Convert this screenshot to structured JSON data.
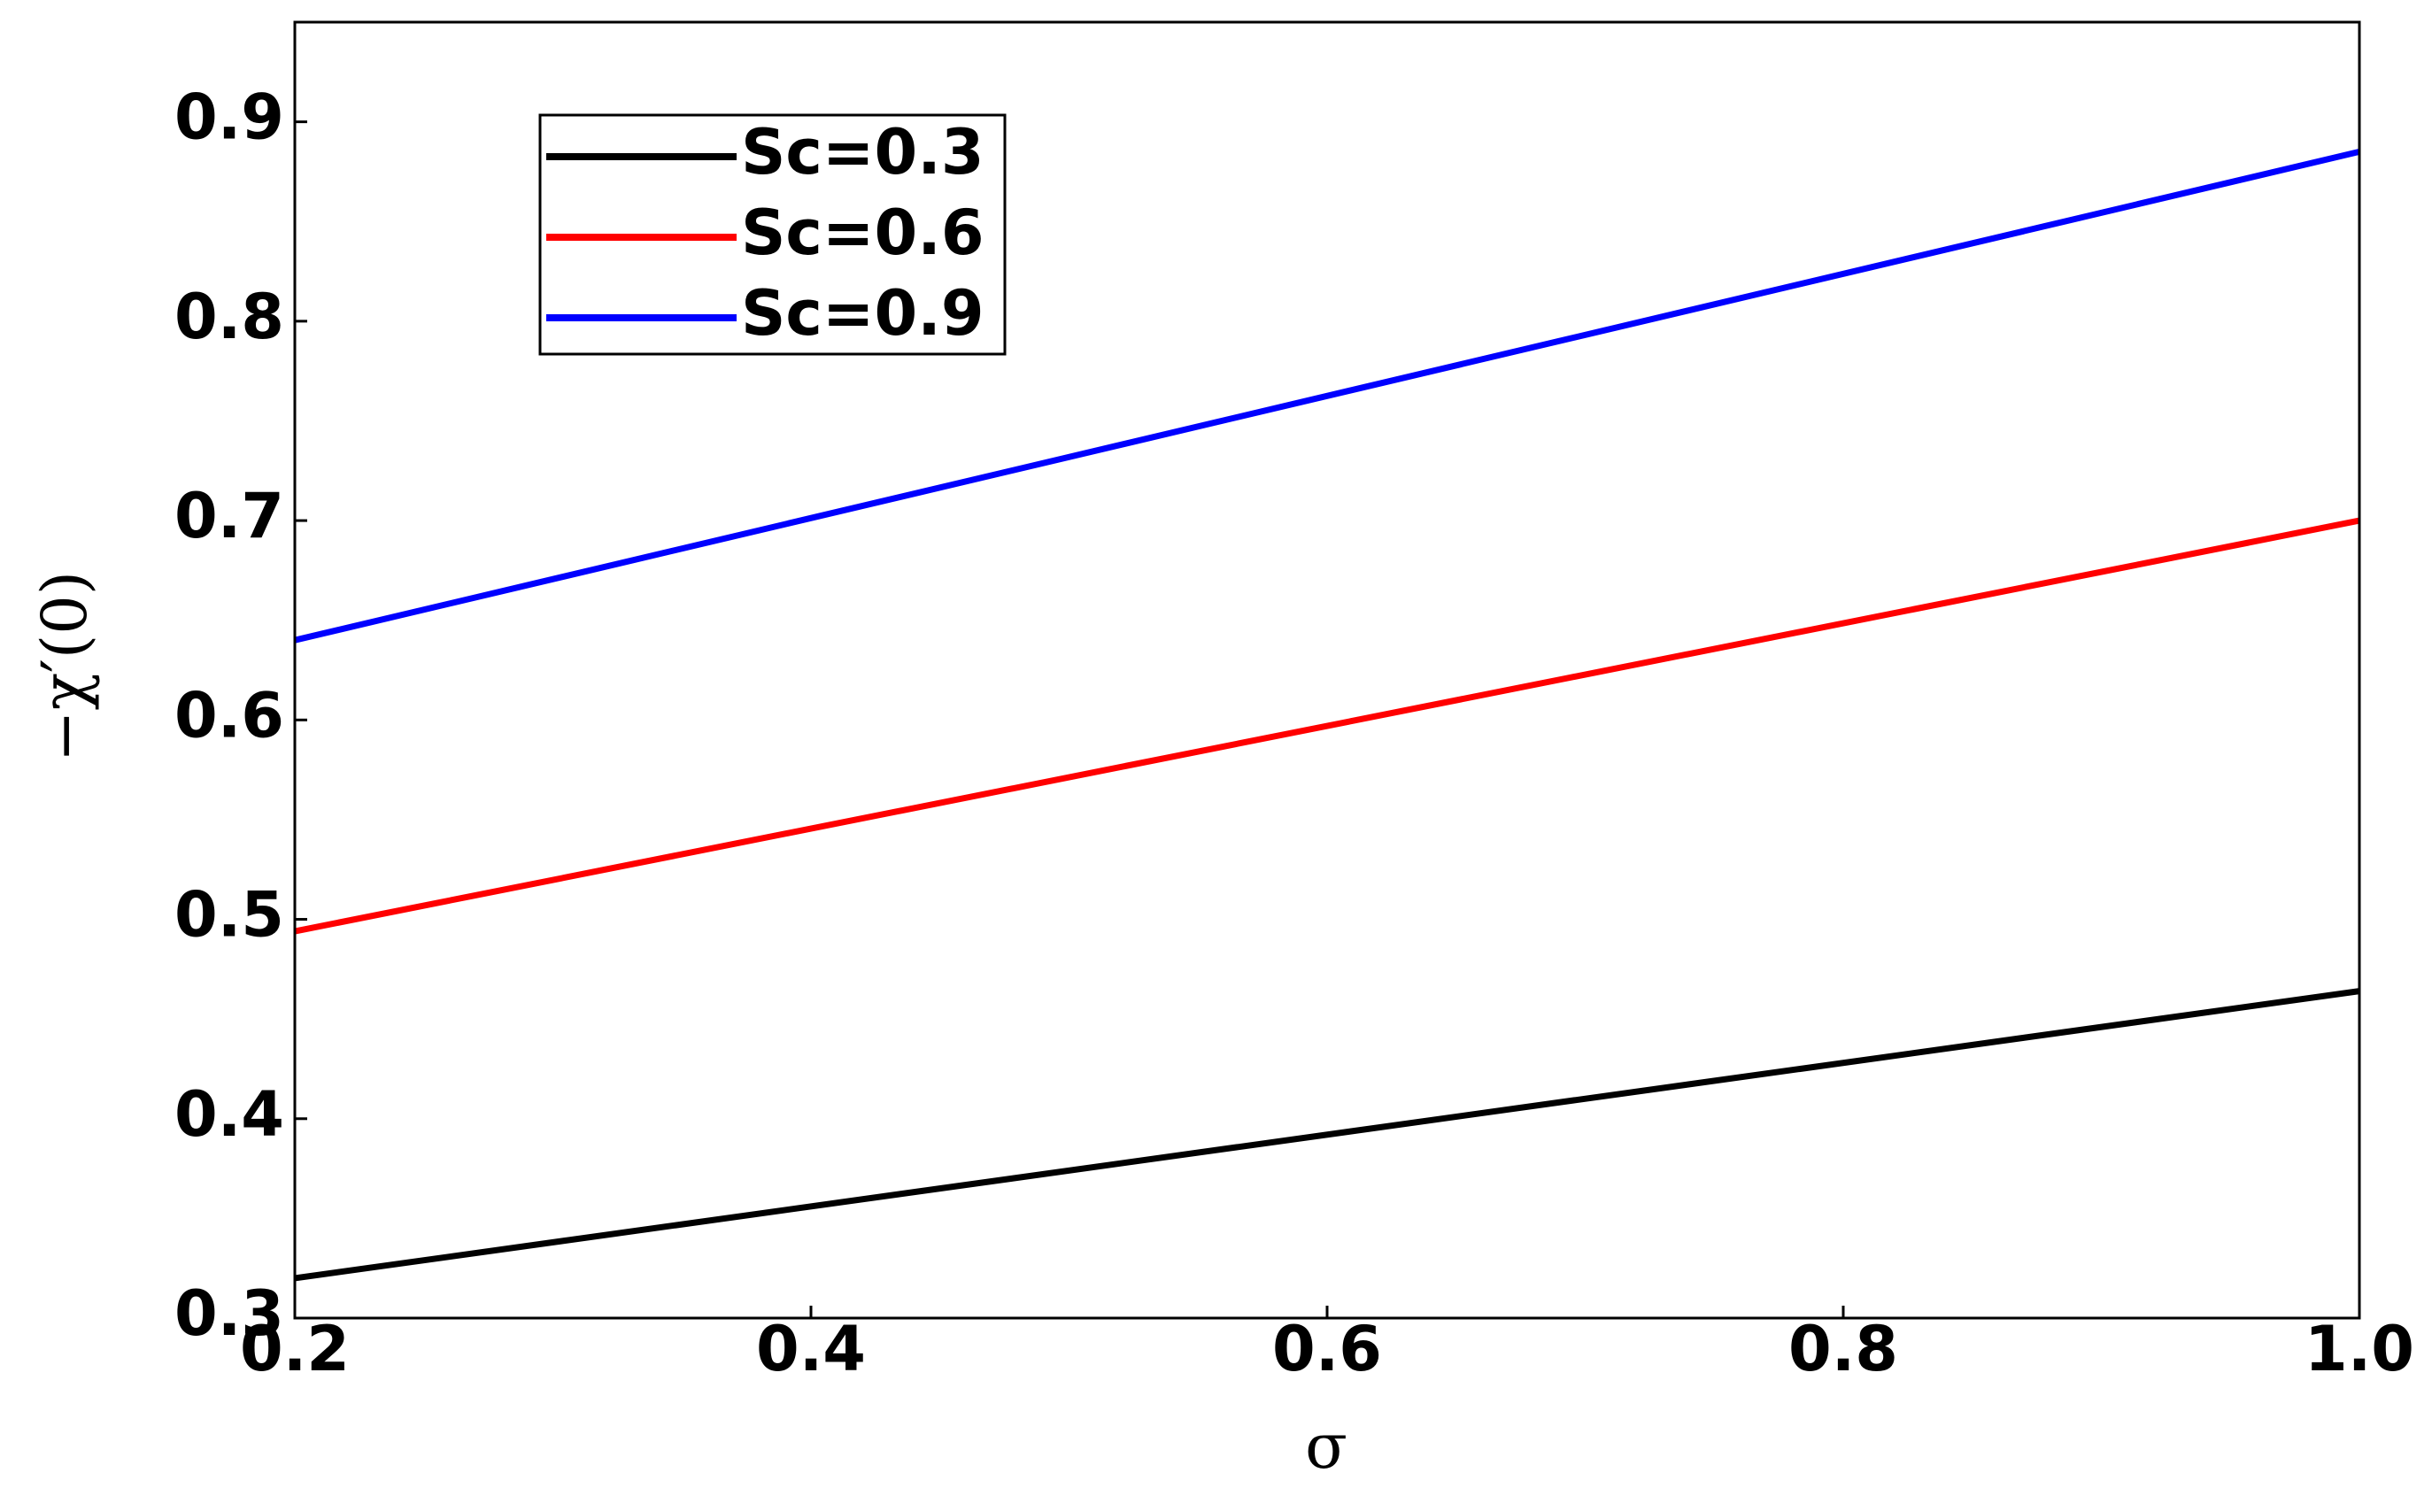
{
  "chart_data": {
    "type": "line",
    "x_label": "σ",
    "y_label": "−χ′(0)",
    "x": [
      0.2,
      1.0
    ],
    "series": [
      {
        "name": "Sc=0.3",
        "color": "#000000",
        "values": [
          0.32,
          0.464
        ]
      },
      {
        "name": "Sc=0.6",
        "color": "#ff0000",
        "values": [
          0.494,
          0.7
        ]
      },
      {
        "name": "Sc=0.9",
        "color": "#0000ff",
        "values": [
          0.64,
          0.885
        ]
      }
    ],
    "xlim": [
      0.2,
      1.0
    ],
    "ylim": [
      0.3,
      0.95
    ],
    "xticks": [
      0.2,
      0.4,
      0.6,
      0.8,
      {
        "value": 1.0,
        "label": "1.0"
      }
    ],
    "yticks": [
      0.3,
      0.4,
      0.5,
      0.6,
      0.7,
      0.8,
      0.9
    ],
    "grid": false,
    "legend": "upper left"
  }
}
